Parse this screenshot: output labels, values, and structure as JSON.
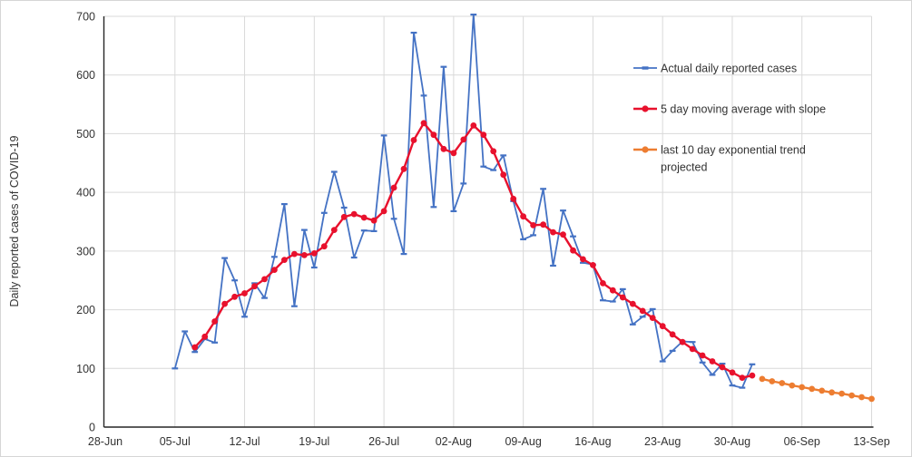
{
  "chart_data": {
    "type": "line",
    "title": "",
    "xlabel": "",
    "ylabel": "Daily reported cases of COVID-19",
    "ylim": [
      0,
      700
    ],
    "ytick_step": 100,
    "x_tick_labels": [
      "28-Jun",
      "05-Jul",
      "12-Jul",
      "19-Jul",
      "26-Jul",
      "02-Aug",
      "09-Aug",
      "16-Aug",
      "23-Aug",
      "30-Aug",
      "06-Sep",
      "13-Sep"
    ],
    "days_per_tick": 7,
    "total_days": 77,
    "grid": true,
    "legend_position": "upper right",
    "series": [
      {
        "name": "Actual daily reported cases",
        "color": "#4472C4",
        "marker": "dash",
        "start_day": 7,
        "start_date": "05-Jul",
        "end_date": "01-Sep",
        "values": [
          100,
          163,
          128,
          150,
          144,
          288,
          250,
          188,
          245,
          220,
          290,
          380,
          206,
          336,
          272,
          365,
          435,
          374,
          289,
          335,
          334,
          497,
          355,
          295,
          672,
          565,
          375,
          614,
          368,
          415,
          703,
          444,
          438,
          463,
          385,
          320,
          327,
          406,
          275,
          369,
          325,
          280,
          277,
          216,
          214,
          235,
          175,
          188,
          201,
          112,
          130,
          146,
          145,
          110,
          89,
          108,
          71,
          67,
          107
        ]
      },
      {
        "name": "5 day moving average with slope",
        "color": "#E8112D",
        "marker": "circle",
        "start_day": 9,
        "start_date": "07-Jul",
        "end_date": "01-Sep",
        "values": [
          136,
          154,
          180,
          210,
          222,
          228,
          240,
          252,
          268,
          285,
          295,
          293,
          296,
          308,
          336,
          358,
          363,
          357,
          352,
          368,
          408,
          440,
          489,
          518,
          498,
          474,
          467,
          490,
          514,
          498,
          470,
          430,
          389,
          359,
          344,
          345,
          332,
          328,
          301,
          286,
          276,
          245,
          233,
          221,
          210,
          198,
          186,
          172,
          158,
          145,
          133,
          122,
          112,
          102,
          93,
          84,
          88
        ]
      },
      {
        "name": "last 10 day exponential trend projected",
        "color": "#ED7D31",
        "marker": "circle",
        "start_day": 66,
        "start_date": "02-Sep",
        "end_date": "13-Sep",
        "values": [
          82,
          78,
          75,
          71,
          68,
          65,
          62,
          59,
          57,
          54,
          51,
          48
        ]
      }
    ],
    "legend": {
      "items": [
        {
          "label": "Actual daily reported cases"
        },
        {
          "label": "5 day moving average with slope"
        },
        {
          "label": "last 10 day exponential trend",
          "label_line2": "projected"
        }
      ]
    }
  },
  "colors": {
    "gridline": "#D9D9D9",
    "axis": "#262626",
    "text": "#333333",
    "background": "#FFFFFF"
  }
}
